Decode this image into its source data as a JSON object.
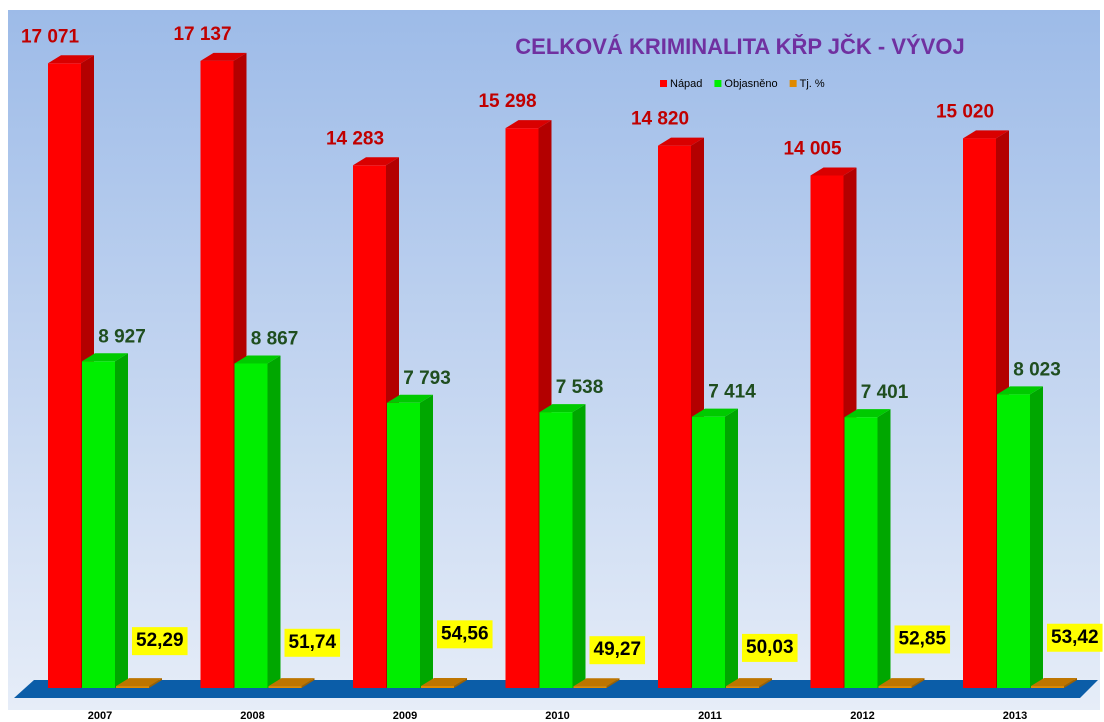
{
  "chart_data": {
    "type": "bar3d",
    "title": "CELKOVÁ KRIMINALITA KŘP JČK - VÝVOJ",
    "categories": [
      "2007",
      "2008",
      "2009",
      "2010",
      "2011",
      "2012",
      "2013"
    ],
    "series": [
      {
        "name": "Nápad",
        "color": "#ff0000",
        "values": [
          17071,
          17137,
          14283,
          15298,
          14820,
          14005,
          15020
        ],
        "value_labels": [
          "17 071",
          "17 137",
          "14 283",
          "15 298",
          "14 820",
          "14 005",
          "15 020"
        ]
      },
      {
        "name": "Objasněno",
        "color": "#00ee00",
        "values": [
          8927,
          8867,
          7793,
          7538,
          7414,
          7401,
          8023
        ],
        "value_labels": [
          "8 927",
          "8 867",
          "7 793",
          "7 538",
          "7 414",
          "7 401",
          "8 023"
        ]
      },
      {
        "name": "Tj. %",
        "color": "#e08a00",
        "values": [
          52.29,
          51.74,
          54.56,
          49.27,
          50.03,
          52.85,
          53.42
        ],
        "value_labels": [
          "52,29",
          "51,74",
          "54,56",
          "49,27",
          "50,03",
          "52,85",
          "53,42"
        ]
      }
    ],
    "ylim": [
      0,
      18800
    ]
  }
}
